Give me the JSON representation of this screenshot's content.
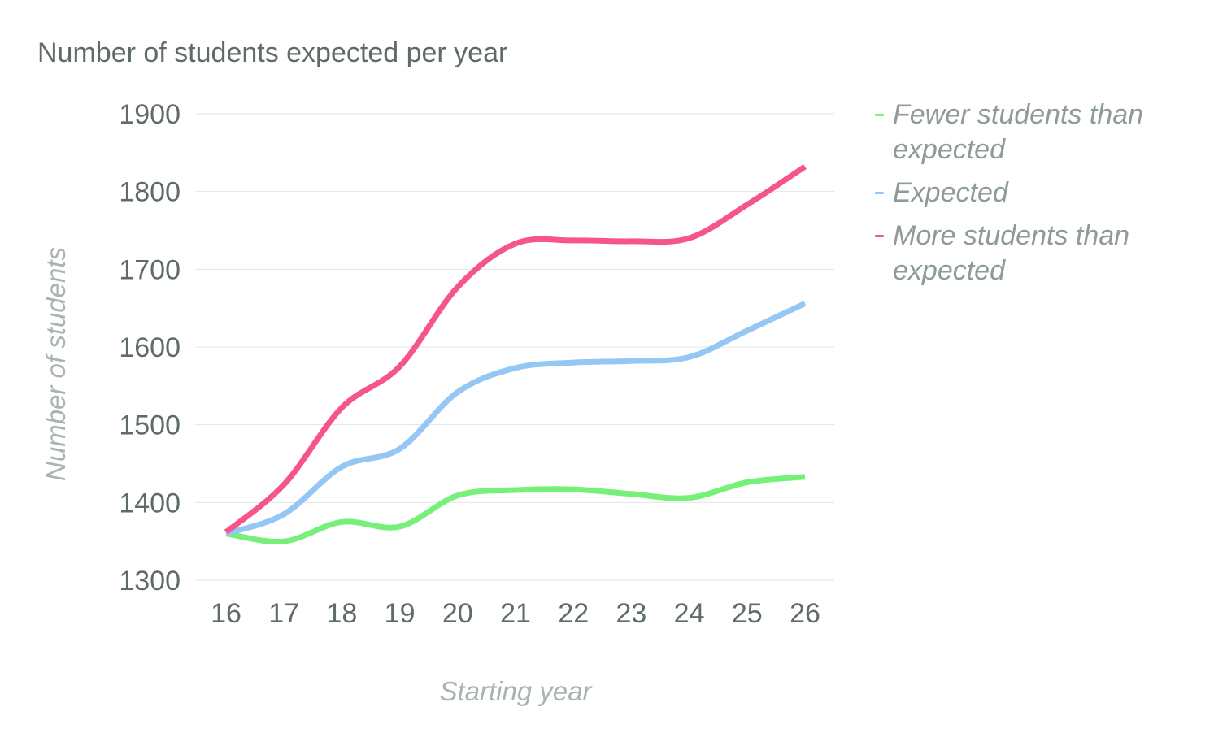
{
  "chart_data": {
    "type": "line",
    "title": "Number of students expected per year",
    "xlabel": "Starting year",
    "ylabel": "Number of students",
    "categories": [
      "16",
      "17",
      "18",
      "19",
      "20",
      "21",
      "22",
      "23",
      "24",
      "25",
      "26"
    ],
    "yticks": [
      "1300",
      "1400",
      "1500",
      "1600",
      "1700",
      "1800",
      "1900"
    ],
    "ylim": [
      1300,
      1900
    ],
    "grid": true,
    "legend_position": "right",
    "series": [
      {
        "name": "Fewer students than expected",
        "color": "#77f07a",
        "values": [
          1360,
          1350,
          1375,
          1369,
          1409,
          1416,
          1417,
          1411,
          1406,
          1426,
          1433
        ]
      },
      {
        "name": "Expected",
        "color": "#95c7f5",
        "values": [
          1360,
          1385,
          1446,
          1469,
          1542,
          1573,
          1580,
          1582,
          1587,
          1621,
          1656
        ]
      },
      {
        "name": "More students than expected",
        "color": "#f5548c",
        "values": [
          1362,
          1423,
          1522,
          1575,
          1677,
          1733,
          1737,
          1736,
          1740,
          1783,
          1832
        ]
      }
    ]
  }
}
